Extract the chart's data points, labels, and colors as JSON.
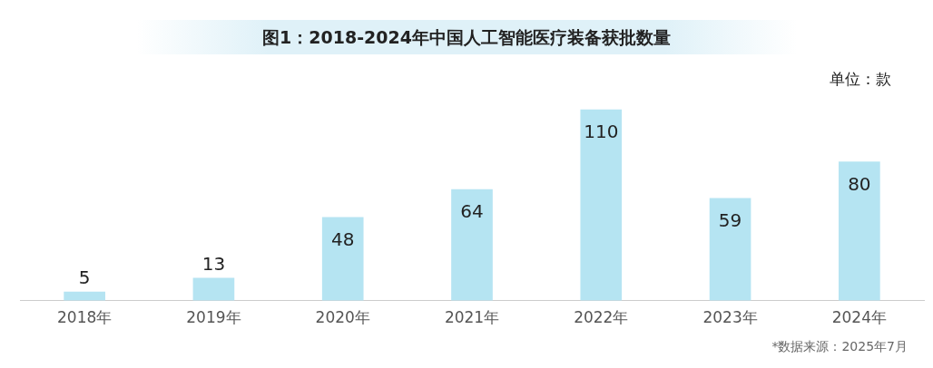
{
  "chart_data": {
    "type": "bar",
    "title": "图1：2018-2024年中国人工智能医疗装备获批数量",
    "categories": [
      "2018年",
      "2019年",
      "2020年",
      "2021年",
      "2022年",
      "2023年",
      "2024年"
    ],
    "values": [
      5,
      13,
      48,
      64,
      110,
      59,
      80
    ],
    "color": "#b5e4f2",
    "data_labels": true,
    "grid": false,
    "legend": false,
    "annotations": [
      "单位：款",
      "*数据来源：2025年7月"
    ]
  }
}
